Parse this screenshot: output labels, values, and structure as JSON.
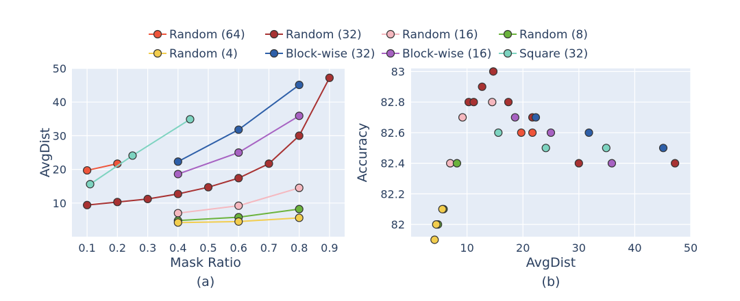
{
  "legend": [
    {
      "name": "Random (64)",
      "color": "#ef553b"
    },
    {
      "name": "Random (32)",
      "color": "#a83232"
    },
    {
      "name": "Random (16)",
      "color": "#f5b8bf"
    },
    {
      "name": "Random (8)",
      "color": "#6bb33c"
    },
    {
      "name": "Random (4)",
      "color": "#f2cd4e"
    },
    {
      "name": "Block-wise (32)",
      "color": "#2e5fa8"
    },
    {
      "name": "Block-wise (16)",
      "color": "#a762c2"
    },
    {
      "name": "Square (32)",
      "color": "#7dd3c0"
    }
  ],
  "chart_data": [
    {
      "type": "line",
      "caption": "(a)",
      "xlabel": "Mask Ratio",
      "ylabel": "AvgDist",
      "xlim": [
        0.05,
        0.95
      ],
      "ylim": [
        0,
        50
      ],
      "xticks": [
        0.1,
        0.2,
        0.3,
        0.4,
        0.5,
        0.6,
        0.7,
        0.8,
        0.9
      ],
      "yticks": [
        10,
        20,
        30,
        40,
        50
      ],
      "series": [
        {
          "name": "Random (64)",
          "x": [
            0.1,
            0.2
          ],
          "y": [
            19.7,
            21.7
          ]
        },
        {
          "name": "Random (32)",
          "x": [
            0.1,
            0.2,
            0.3,
            0.4,
            0.5,
            0.6,
            0.7,
            0.8,
            0.9
          ],
          "y": [
            9.4,
            10.3,
            11.2,
            12.7,
            14.7,
            17.4,
            21.7,
            30.0,
            47.2
          ]
        },
        {
          "name": "Random (16)",
          "x": [
            0.4,
            0.6,
            0.8
          ],
          "y": [
            7.0,
            9.2,
            14.5
          ]
        },
        {
          "name": "Random (8)",
          "x": [
            0.4,
            0.6,
            0.8
          ],
          "y": [
            4.8,
            5.8,
            8.2
          ]
        },
        {
          "name": "Random (4)",
          "x": [
            0.4,
            0.6,
            0.8
          ],
          "y": [
            4.2,
            4.5,
            5.6
          ]
        },
        {
          "name": "Block-wise (32)",
          "x": [
            0.4,
            0.6,
            0.8
          ],
          "y": [
            22.3,
            31.8,
            45.1
          ]
        },
        {
          "name": "Block-wise (16)",
          "x": [
            0.4,
            0.6,
            0.8
          ],
          "y": [
            18.6,
            25.0,
            35.9
          ]
        },
        {
          "name": "Square (32)",
          "x": [
            0.11,
            0.25,
            0.44
          ],
          "y": [
            15.6,
            24.1,
            34.9
          ]
        }
      ]
    },
    {
      "type": "scatter",
      "caption": "(b)",
      "xlabel": "AvgDist",
      "ylabel": "Accuracy",
      "xlim": [
        0,
        50
      ],
      "ylim": [
        81.92,
        83.02
      ],
      "xticks": [
        10,
        20,
        30,
        40,
        50
      ],
      "yticks": [
        82,
        82.2,
        82.4,
        82.6,
        82.8,
        83
      ],
      "series": [
        {
          "name": "Random (64)",
          "x": [
            19.7,
            21.7
          ],
          "y": [
            82.6,
            82.6
          ]
        },
        {
          "name": "Random (32)",
          "x": [
            10.3,
            11.2,
            12.7,
            14.7,
            17.4,
            21.7,
            30.0,
            47.2
          ],
          "y": [
            82.8,
            82.8,
            82.9,
            83.0,
            82.8,
            82.7,
            82.4,
            82.4
          ]
        },
        {
          "name": "Random (16)",
          "x": [
            7.0,
            9.2,
            14.5
          ],
          "y": [
            82.4,
            82.7,
            82.8
          ]
        },
        {
          "name": "Random (8)",
          "x": [
            4.8,
            5.8,
            8.2
          ],
          "y": [
            82.0,
            82.1,
            82.4
          ]
        },
        {
          "name": "Random (4)",
          "x": [
            4.2,
            4.5,
            5.6
          ],
          "y": [
            81.9,
            82.0,
            82.1
          ]
        },
        {
          "name": "Block-wise (32)",
          "x": [
            22.3,
            31.8,
            45.1
          ],
          "y": [
            82.7,
            82.6,
            82.5
          ]
        },
        {
          "name": "Block-wise (16)",
          "x": [
            18.6,
            25.0,
            35.9
          ],
          "y": [
            82.7,
            82.6,
            82.4
          ]
        },
        {
          "name": "Square (32)",
          "x": [
            15.6,
            24.1,
            34.9
          ],
          "y": [
            82.6,
            82.5,
            82.5
          ]
        }
      ]
    }
  ]
}
